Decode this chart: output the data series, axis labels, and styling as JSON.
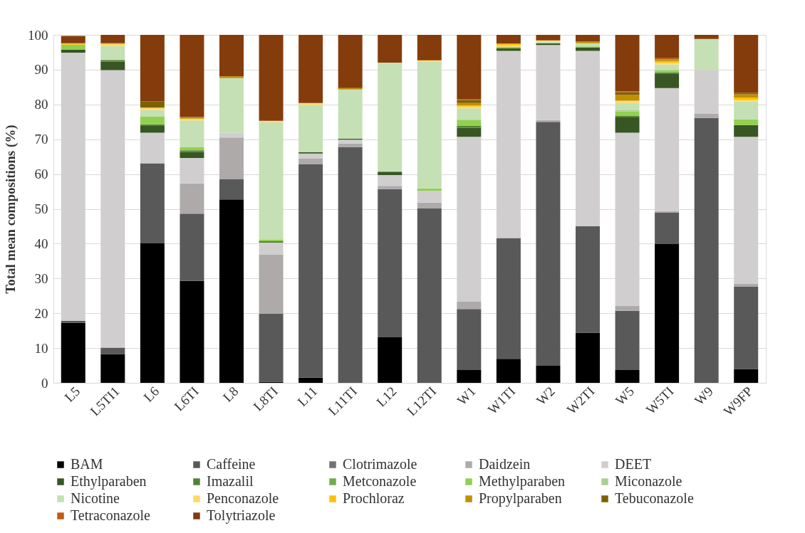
{
  "chart_data": {
    "type": "bar",
    "stacked": true,
    "ylabel": "Total mean compositions (%)",
    "categories": [
      "L5",
      "L5TI1",
      "L6",
      "L6TI",
      "L8",
      "L8TI",
      "L11",
      "L11TI",
      "L12",
      "L12TI",
      "W1",
      "W1TI",
      "W2",
      "W2TI",
      "W5",
      "W5TI",
      "W9",
      "W9FP"
    ],
    "ylim": [
      0,
      100
    ],
    "yticks": [
      0,
      10,
      20,
      30,
      40,
      50,
      60,
      70,
      80,
      90,
      100
    ],
    "grid": "y",
    "legend": "bottom",
    "series": [
      {
        "name": "BAM",
        "color": "#000000",
        "values": [
          17.3,
          8.3,
          40.1,
          29.3,
          52.7,
          0.3,
          1.5,
          0,
          13.1,
          0,
          3.7,
          6.9,
          4.9,
          14.4,
          3.7,
          39.9,
          0,
          4.0
        ]
      },
      {
        "name": "Caffeine",
        "color": "#595959",
        "values": [
          0.5,
          1.8,
          23.0,
          19.3,
          5.9,
          19.6,
          61.4,
          67.7,
          42.6,
          50.1,
          17.5,
          34.7,
          70.1,
          30.6,
          17.0,
          9.0,
          76.1,
          23.6
        ]
      },
      {
        "name": "Clotrimazole",
        "color": "#767171",
        "values": [
          0,
          0,
          0,
          0,
          0,
          0,
          0,
          0,
          0,
          0,
          0,
          0,
          0,
          0,
          0,
          0,
          0,
          0
        ]
      },
      {
        "name": "Daidzein",
        "color": "#aeaaaa",
        "values": [
          0,
          0,
          0,
          8.7,
          11.9,
          17.0,
          1.5,
          1.1,
          0.9,
          1.7,
          2.1,
          0,
          0.5,
          0,
          1.5,
          0.5,
          1.2,
          0.8
        ]
      },
      {
        "name": "DEET",
        "color": "#d0cece",
        "values": [
          77.1,
          79.8,
          8.8,
          7.3,
          1.4,
          3.4,
          1.5,
          1.1,
          3.1,
          3.4,
          47.4,
          53.8,
          21.6,
          50.4,
          49.7,
          35.3,
          12.6,
          42.3
        ]
      },
      {
        "name": "Ethylparaben",
        "color": "#375623",
        "values": [
          0.8,
          2.4,
          1.9,
          1.7,
          0,
          0,
          0.4,
          0.3,
          1.0,
          0,
          2.6,
          0.7,
          0.5,
          1.0,
          4.4,
          4.2,
          0,
          3.4
        ]
      },
      {
        "name": "Imazalil",
        "color": "#548235",
        "values": [
          0,
          0.5,
          0.5,
          0.5,
          0,
          0.4,
          0,
          0,
          0,
          0,
          0.5,
          0,
          0,
          0,
          0.5,
          0.3,
          0,
          0
        ]
      },
      {
        "name": "Metconazole",
        "color": "#70ad47",
        "values": [
          0,
          0,
          0,
          0,
          0,
          0,
          0,
          0,
          0,
          0,
          0,
          0,
          0,
          0,
          0,
          0,
          0,
          0
        ]
      },
      {
        "name": "Methylparaben",
        "color": "#92d050",
        "values": [
          1.5,
          0,
          2.2,
          0.9,
          0,
          0.5,
          0,
          0,
          0,
          0.7,
          1.8,
          0.5,
          0,
          0.3,
          1.2,
          0.7,
          0,
          1.6
        ]
      },
      {
        "name": "Miconazole",
        "color": "#a9d18e",
        "values": [
          0,
          0,
          0,
          0,
          0,
          0,
          0,
          0,
          0,
          0,
          0,
          0,
          0,
          0,
          0.3,
          0,
          0,
          0
        ]
      },
      {
        "name": "Nicotine",
        "color": "#c5e0b4",
        "values": [
          null,
          4.0,
          1.9,
          7.7,
          15.7,
          33.7,
          13.6,
          14.1,
          31.3,
          36.4,
          3.3,
          0,
          0.5,
          0.9,
          2.1,
          1.6,
          8.9,
          5.2
        ]
      },
      {
        "name": "Penconazole",
        "color": "#ffd966",
        "values": [
          0,
          0.5,
          0.7,
          0.5,
          0,
          0.4,
          0.5,
          0,
          0,
          0.4,
          0.5,
          0.4,
          0.3,
          0,
          0.7,
          0.5,
          0,
          0.4
        ]
      },
      {
        "name": "Prochloraz",
        "color": "#ffc000",
        "values": [
          0.4,
          0.3,
          0,
          0,
          0,
          0,
          0,
          0,
          0,
          0,
          0.3,
          0.5,
          0,
          0,
          0,
          0.5,
          0,
          0.7
        ]
      },
      {
        "name": "Propylparaben",
        "color": "#bf9000",
        "values": [
          0,
          0,
          0,
          0.5,
          0.5,
          0,
          0,
          0.4,
          0,
          0,
          0.7,
          0,
          0,
          0.5,
          1.6,
          0.5,
          0,
          0.9
        ]
      },
      {
        "name": "Tebuconazole",
        "color": "#7f6000",
        "values": [
          0,
          0,
          1.8,
          0,
          0,
          0,
          0,
          0,
          0,
          0,
          0.9,
          0,
          0,
          0,
          0.8,
          0,
          0,
          0.5
        ]
      },
      {
        "name": "Tetraconazole",
        "color": "#c55a11",
        "values": [
          0,
          0,
          0,
          0,
          0,
          0,
          0,
          0,
          0,
          0,
          0.3,
          0,
          0,
          0,
          0.3,
          0.3,
          0,
          0
        ]
      },
      {
        "name": "Tolytriazole",
        "color": "#843c0c",
        "values": [
          2.1,
          2.4,
          19.1,
          23.6,
          11.9,
          24.7,
          19.6,
          15.3,
          8.0,
          7.3,
          18.4,
          2.5,
          1.6,
          1.9,
          16.2,
          6.7,
          1.2,
          16.6
        ]
      }
    ]
  }
}
